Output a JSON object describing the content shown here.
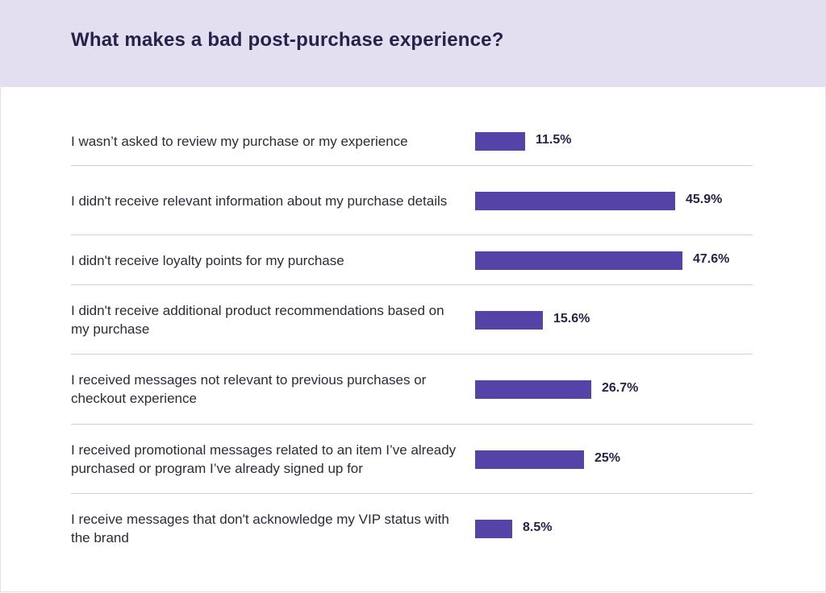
{
  "chart_data": {
    "type": "bar",
    "orientation": "horizontal",
    "title": "What makes a bad post-purchase experience?",
    "categories": [
      "I wasn’t asked to review my purchase or my experience",
      "I didn't receive relevant information about my purchase details",
      "I didn't receive loyalty points for my purchase",
      "I didn't receive additional product recommendations based on my purchase",
      "I received messages not relevant to previous purchases or checkout experience",
      "I received promotional messages related to an item I’ve already purchased or program I’ve already signed up for",
      "I receive messages that don't acknowledge my VIP status with the brand"
    ],
    "values": [
      11.5,
      45.9,
      47.6,
      15.6,
      26.7,
      25,
      8.5
    ],
    "value_labels": [
      "11.5%",
      "45.9%",
      "47.6%",
      "15.6%",
      "26.7%",
      "25%",
      "8.5%"
    ],
    "xlim": [
      0,
      48
    ],
    "grid": false,
    "colors": {
      "bar": "#5543a8",
      "header": "#e3def0",
      "title": "#25234a"
    }
  }
}
